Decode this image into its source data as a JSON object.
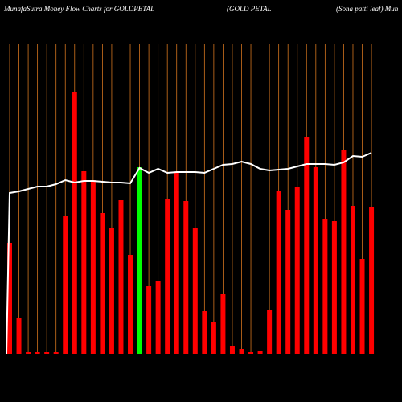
{
  "chart_data": {
    "type": "bar",
    "title": "MunafaSutra  Money Flow  Charts for GOLDPETAL",
    "subtitle": "(GOLD PETAL",
    "subtitle2": "(Sona  patti  leaf) Mun",
    "categories": [
      null,
      null,
      null,
      null,
      null,
      null,
      null,
      null,
      null,
      null,
      null,
      null,
      null,
      null,
      null,
      null,
      null,
      null,
      null,
      null,
      null,
      null,
      null,
      null,
      null,
      null,
      null,
      null,
      null,
      null,
      null,
      null,
      null,
      null,
      null,
      null,
      null,
      null,
      null,
      null
    ],
    "series": [
      {
        "color": "#ff0000",
        "highlight_color": "#00ff00",
        "highlight_index": 14,
        "values": [
          138,
          44,
          2,
          2,
          2,
          2,
          171,
          325,
          227,
          216,
          175,
          156,
          191,
          123,
          232,
          84,
          91,
          192,
          226,
          190,
          157,
          53,
          40,
          74,
          10,
          6,
          2,
          3,
          55,
          202,
          179,
          208,
          270,
          232,
          168,
          165,
          253,
          184,
          118,
          183
        ]
      },
      {
        "color": "#ffffff",
        "line": true,
        "values": [
          200,
          202,
          205,
          208,
          208,
          211,
          216,
          213,
          215,
          215,
          214,
          213,
          213,
          212,
          231,
          225,
          230,
          225,
          226,
          226,
          226,
          225,
          230,
          235,
          236,
          239,
          236,
          230,
          228,
          229,
          230,
          233,
          236,
          236,
          236,
          235,
          238,
          246,
          245,
          250
        ]
      }
    ],
    "ylim": [
      0,
      340
    ],
    "grid": true,
    "grid_color": "#d2741e"
  }
}
